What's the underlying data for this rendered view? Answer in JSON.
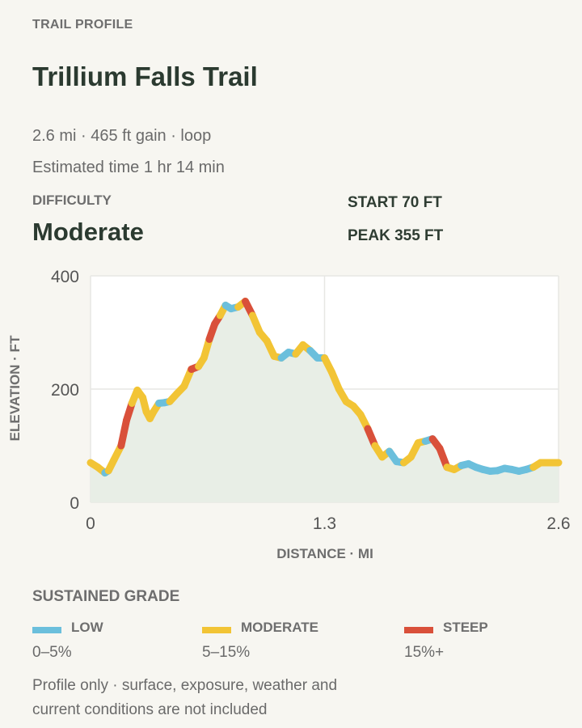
{
  "header": {
    "overline": "TRAIL PROFILE",
    "title": "Trillium Falls Trail",
    "summary": "2.6 mi · 465 ft gain · loop",
    "estimate": "Estimated time 1 hr 14 min"
  },
  "difficulty": {
    "label": "DIFFICULTY",
    "value": "Moderate"
  },
  "stats": {
    "start": "START 70 FT",
    "peak": "PEAK 355 FT"
  },
  "colors": {
    "low": "#6bbfdc",
    "moderate": "#f2c435",
    "steep": "#d9503a",
    "fill": "#e8eee6",
    "grid": "#e7e7e4"
  },
  "chart_data": {
    "type": "line",
    "xlabel": "DISTANCE · MI",
    "ylabel": "ELEVATION · FT",
    "xlim": [
      0,
      2.6
    ],
    "ylim": [
      0,
      400
    ],
    "x_ticks": [
      "0",
      "1.3",
      "2.6"
    ],
    "y_ticks": [
      "0",
      "200",
      "400"
    ],
    "x_tick_values": [
      0,
      1.3,
      2.6
    ],
    "y_tick_values": [
      0,
      200,
      400
    ],
    "grid": true,
    "series": [
      {
        "x": [
          0,
          0.04,
          0.08,
          0.1,
          0.13,
          0.17,
          0.2,
          0.23,
          0.26,
          0.29,
          0.31,
          0.33,
          0.35,
          0.38,
          0.41,
          0.44,
          0.48,
          0.52,
          0.56,
          0.6,
          0.63,
          0.66,
          0.69,
          0.72,
          0.75,
          0.78,
          0.82,
          0.86,
          0.9,
          0.94,
          0.98,
          1.02,
          1.06,
          1.1,
          1.14,
          1.18,
          1.22,
          1.26,
          1.3,
          1.34,
          1.38,
          1.42,
          1.46,
          1.5,
          1.54,
          1.58,
          1.62,
          1.66,
          1.7,
          1.74,
          1.78,
          1.82,
          1.86,
          1.9,
          1.94,
          1.98,
          2.02,
          2.06,
          2.1,
          2.14,
          2.18,
          2.22,
          2.26,
          2.3,
          2.34,
          2.38,
          2.42,
          2.46,
          2.5,
          2.54,
          2.58,
          2.6
        ],
        "y": [
          70,
          62,
          52,
          56,
          75,
          100,
          145,
          175,
          198,
          185,
          160,
          148,
          160,
          175,
          176,
          178,
          192,
          205,
          235,
          240,
          255,
          288,
          315,
          330,
          348,
          342,
          345,
          355,
          330,
          300,
          285,
          258,
          255,
          265,
          262,
          278,
          268,
          255,
          255,
          230,
          200,
          178,
          170,
          155,
          130,
          100,
          80,
          90,
          72,
          70,
          80,
          105,
          108,
          112,
          95,
          62,
          58,
          65,
          68,
          62,
          58,
          55,
          56,
          60,
          58,
          55,
          58,
          62,
          70,
          70,
          70,
          70
        ],
        "grade": [
          "moderate",
          "moderate",
          "low",
          "moderate",
          "moderate",
          "steep",
          "steep",
          "moderate",
          "moderate",
          "moderate",
          "moderate",
          "moderate",
          "moderate",
          "low",
          "low",
          "moderate",
          "moderate",
          "moderate",
          "steep",
          "moderate",
          "moderate",
          "steep",
          "steep",
          "moderate",
          "low",
          "low",
          "moderate",
          "steep",
          "moderate",
          "moderate",
          "moderate",
          "moderate",
          "low",
          "low",
          "moderate",
          "moderate",
          "low",
          "low",
          "moderate",
          "moderate",
          "moderate",
          "moderate",
          "moderate",
          "moderate",
          "steep",
          "moderate",
          "moderate",
          "low",
          "low",
          "moderate",
          "moderate",
          "moderate",
          "low",
          "steep",
          "steep",
          "moderate",
          "moderate",
          "low",
          "low",
          "low",
          "low",
          "low",
          "low",
          "low",
          "low",
          "low",
          "low",
          "moderate",
          "moderate",
          "moderate",
          "moderate"
        ]
      }
    ]
  },
  "legend": {
    "title": "SUSTAINED GRADE",
    "items": [
      {
        "name": "LOW",
        "range": "0–5%",
        "color": "#6bbfdc"
      },
      {
        "name": "MODERATE",
        "range": "5–15%",
        "color": "#f2c435"
      },
      {
        "name": "STEEP",
        "range": "15%+",
        "color": "#d9503a"
      }
    ]
  },
  "footnote": "Profile only · surface, exposure, weather and current conditions are not included"
}
